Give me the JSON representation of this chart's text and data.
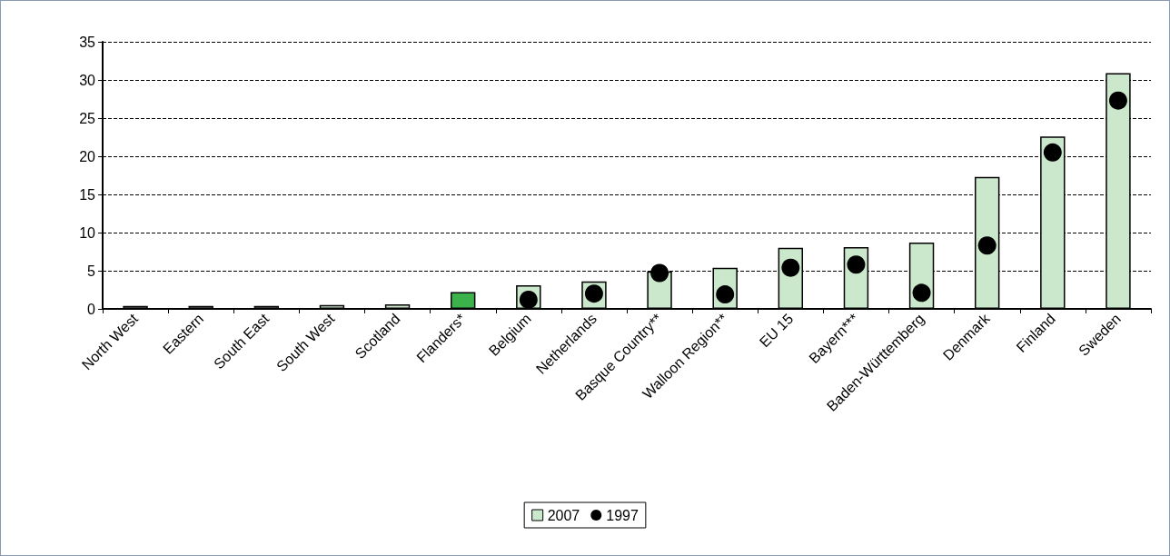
{
  "chart_data": {
    "type": "bar",
    "categories": [
      "North West",
      "Eastern",
      "South East",
      "South West",
      "Scotland",
      "Flanders*",
      "Belgium",
      "Netherlands",
      "Basque Country**",
      "Walloon Region**",
      "EU 15",
      "Bayern***",
      "Baden-Württemberg",
      "Denmark",
      "Finland",
      "Sweden"
    ],
    "series": [
      {
        "name": "2007",
        "color": "#cce8cc",
        "colors": [
          "#cce8cc",
          "#cce8cc",
          "#cce8cc",
          "#cce8cc",
          "#cce8cc",
          "#3cb34a",
          "#cce8cc",
          "#cce8cc",
          "#cce8cc",
          "#cce8cc",
          "#cce8cc",
          "#cce8cc",
          "#cce8cc",
          "#cce8cc",
          "#cce8cc",
          "#cce8cc"
        ],
        "values": [
          0.4,
          0.4,
          0.4,
          0.5,
          0.6,
          2.2,
          3.1,
          3.6,
          4.9,
          5.4,
          8.0,
          8.1,
          8.7,
          17.3,
          22.6,
          30.9
        ]
      },
      {
        "name": "1997",
        "type": "scatter",
        "color": "#000000",
        "marker": "circle",
        "values": [
          null,
          null,
          null,
          null,
          null,
          null,
          1.2,
          2.0,
          4.7,
          1.9,
          5.4,
          5.8,
          2.1,
          8.3,
          20.5,
          27.3
        ]
      }
    ],
    "ylim": [
      0,
      35
    ],
    "yticks": [
      0,
      5,
      10,
      15,
      20,
      25,
      30,
      35
    ],
    "grid": "y",
    "line_style": "dashed",
    "legend": "bottom"
  }
}
